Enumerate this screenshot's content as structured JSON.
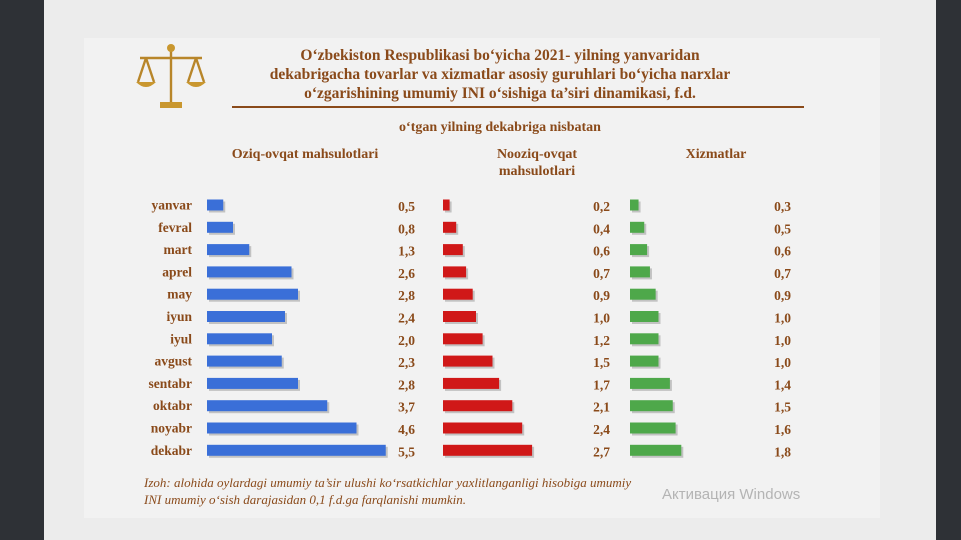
{
  "title": "O‘zbekiston Respublikasi bo‘yicha 2021- yilning yanvaridan dekabrigacha tovarlar va xizmatlar asosiy guruhlari bo‘yicha narxlar o‘zgarishining umumiy INI o‘sishiga ta’siri dinamikasi, f.d.",
  "title_lines": [
    "O‘zbekiston Respublikasi bo‘yicha 2021- yilning yanvaridan",
    "dekabrigacha tovarlar va xizmatlar asosiy guruhlari bo‘yicha narxlar",
    "o‘zgarishining umumiy INI o‘sishiga ta’siri dinamikasi, f.d."
  ],
  "subtitle": "o‘tgan yilning dekabriga nisbatan",
  "note_lines": [
    "Izoh: alohida oylardagi umumiy ta’sir ulushi ko‘rsatkichlar yaxlitlanganligi hisobiga umumiy",
    "INI umumiy o‘sish darajasidan 0,1 f.d.ga farqlanishi mumkin."
  ],
  "watermark": "Активация Windows",
  "colors": {
    "food": "#3a6fd8",
    "nonfood": "#d01818",
    "services": "#4ea84a",
    "text": "#8a4a1a"
  },
  "chart_data": {
    "type": "bar",
    "orientation": "horizontal",
    "categories": [
      "yanvar",
      "fevral",
      "mart",
      "aprel",
      "may",
      "iyun",
      "iyul",
      "avgust",
      "sentabr",
      "oktabr",
      "noyabr",
      "dekabr"
    ],
    "series": [
      {
        "name": "Oziq-ovqat mahsulotlari",
        "values": [
          0.5,
          0.8,
          1.3,
          2.6,
          2.8,
          2.4,
          2.0,
          2.3,
          2.8,
          3.7,
          4.6,
          5.5
        ],
        "labels": [
          "0,5",
          "0,8",
          "1,3",
          "2,6",
          "2,8",
          "2,4",
          "2,0",
          "2,3",
          "2,8",
          "3,7",
          "4,6",
          "5,5"
        ]
      },
      {
        "name": "Nooziq-ovqat mahsulotlari",
        "values": [
          0.2,
          0.4,
          0.6,
          0.7,
          0.9,
          1.0,
          1.2,
          1.5,
          1.7,
          2.1,
          2.4,
          2.7
        ],
        "labels": [
          "0,2",
          "0,4",
          "0,6",
          "0,7",
          "0,9",
          "1,0",
          "1,2",
          "1,5",
          "1,7",
          "2,1",
          "2,4",
          "2,7"
        ]
      },
      {
        "name": "Xizmatlar",
        "values": [
          0.3,
          0.5,
          0.6,
          0.7,
          0.9,
          1.0,
          1.0,
          1.0,
          1.4,
          1.5,
          1.6,
          1.8
        ],
        "labels": [
          "0,3",
          "0,5",
          "0,6",
          "0,7",
          "0,9",
          "1,0",
          "1,0",
          "1,0",
          "1,4",
          "1,5",
          "1,6",
          "1,8"
        ]
      }
    ],
    "column_headers": [
      "Oziq-ovqat mahsulotlari",
      "Nooziq-ovqat mahsulotlari",
      "Xizmatlar"
    ],
    "grid": false
  }
}
